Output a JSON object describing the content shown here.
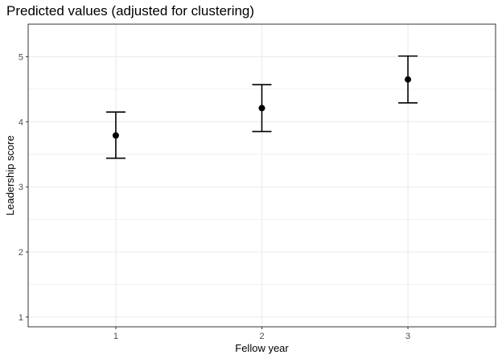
{
  "chart_data": {
    "type": "scatter",
    "title": "Predicted values (adjusted for clustering)",
    "xlabel": "Fellow year",
    "ylabel": "Leadership score",
    "categories": [
      "1",
      "2",
      "3"
    ],
    "series": [
      {
        "values": [
          3.79,
          4.21,
          4.65
        ],
        "lower": [
          3.44,
          3.85,
          4.29
        ],
        "upper": [
          4.15,
          4.57,
          5.01
        ]
      }
    ],
    "ylim": [
      0.85,
      5.5
    ],
    "yticks": [
      1,
      2,
      3,
      4,
      5
    ],
    "grid": true,
    "colors": {
      "point": "#000000",
      "grid": "#ebebeb",
      "panel_border": "#333333"
    }
  }
}
